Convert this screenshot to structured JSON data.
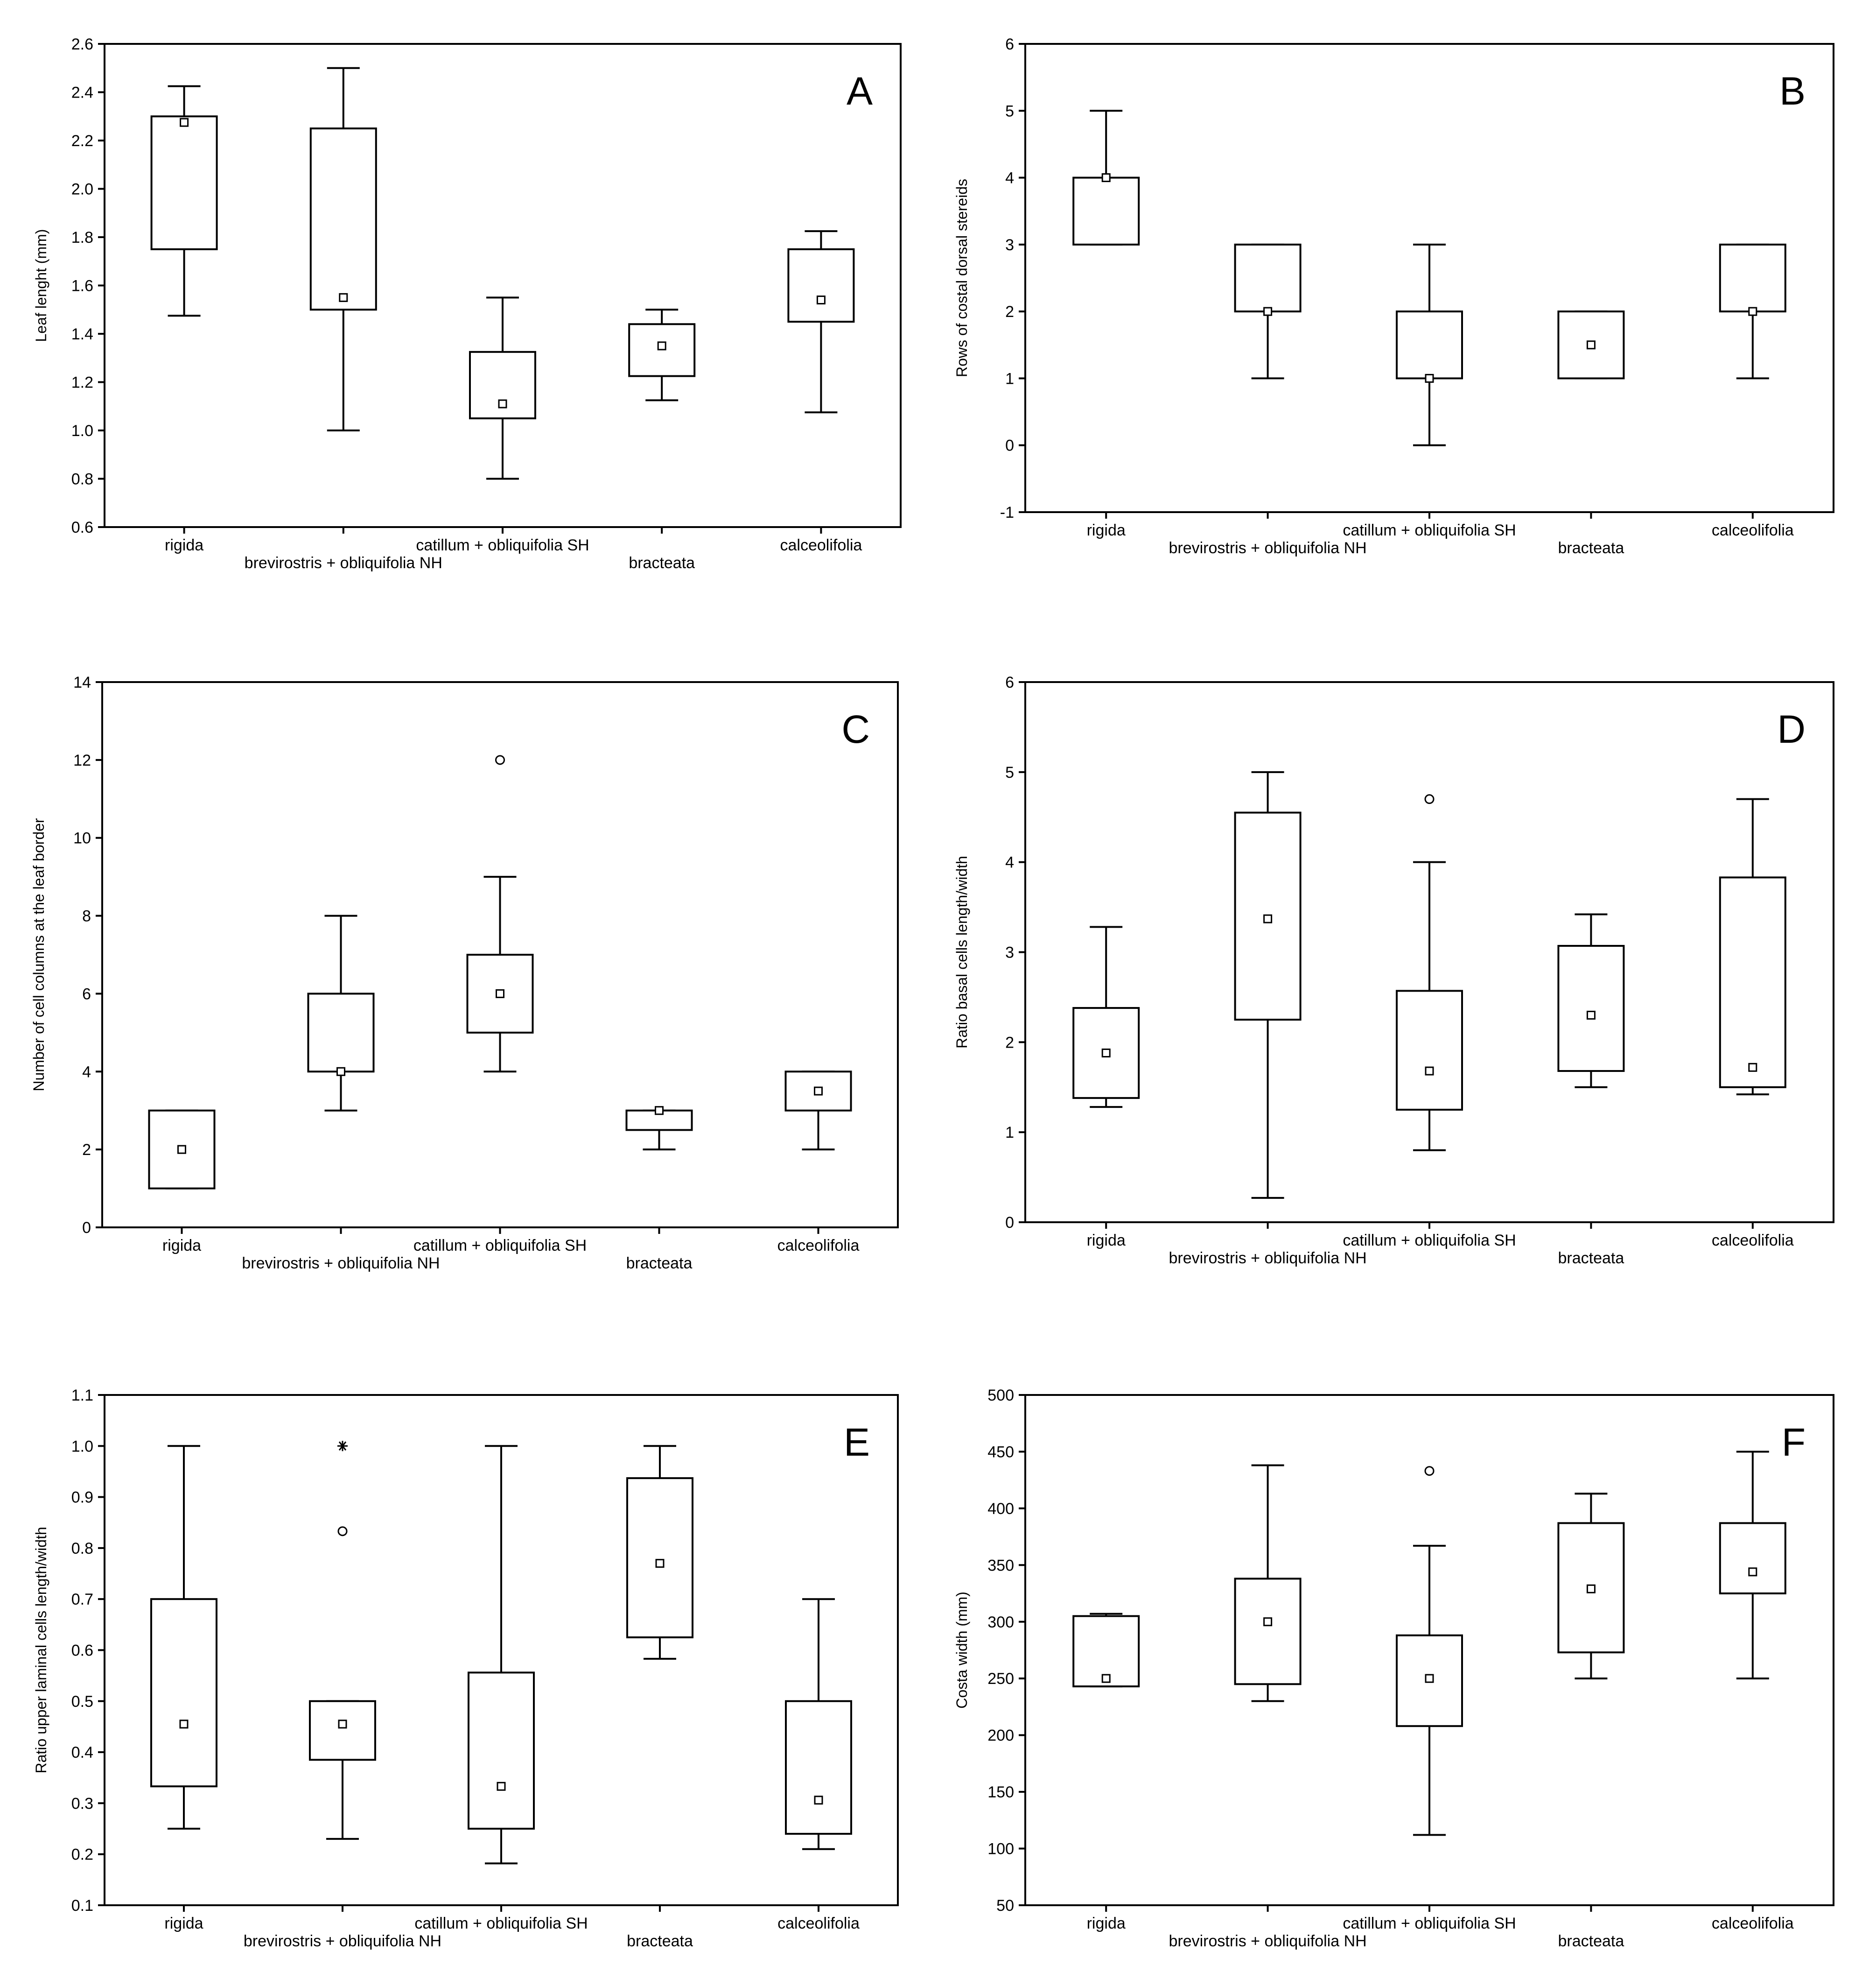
{
  "figure": {
    "categories": [
      "rigida",
      "brevirostris + obliquifolia NH",
      "catillum + obliquifolia SH",
      "bracteata",
      "calceolifolia"
    ],
    "colors": {
      "stroke": "#000000",
      "background": "#ffffff"
    }
  },
  "chart_data": [
    {
      "type": "box",
      "panel": "A",
      "title": "",
      "xlabel": "",
      "ylabel": "Leaf lenght (mm)",
      "ylim": [
        0.6,
        2.6
      ],
      "yticks": [
        0.6,
        0.8,
        1.0,
        1.2,
        1.4,
        1.6,
        1.8,
        2.0,
        2.2,
        2.4,
        2.6
      ],
      "ytick_labels": [
        "0.6",
        "0.8",
        "1.0",
        "1.2",
        "1.4",
        "1.6",
        "1.8",
        "2.0",
        "2.2",
        "2.4",
        "2.6"
      ],
      "categories": [
        "rigida",
        "brevirostris + obliquifolia NH",
        "catillum + obliquifolia SH",
        "bracteata",
        "calceolifolia"
      ],
      "boxes": [
        {
          "min": 1.475,
          "q1": 1.75,
          "median": 2.275,
          "q3": 2.3,
          "max": 2.425,
          "outliers": [],
          "extremes": []
        },
        {
          "min": 1.0,
          "q1": 1.5,
          "median": 1.55,
          "q3": 2.25,
          "max": 2.5,
          "outliers": [],
          "extremes": []
        },
        {
          "min": 0.8,
          "q1": 1.05,
          "median": 1.11,
          "q3": 1.325,
          "max": 1.55,
          "outliers": [],
          "extremes": []
        },
        {
          "min": 1.125,
          "q1": 1.225,
          "median": 1.35,
          "q3": 1.44,
          "max": 1.5,
          "outliers": [],
          "extremes": []
        },
        {
          "min": 1.075,
          "q1": 1.45,
          "median": 1.54,
          "q3": 1.75,
          "max": 1.825,
          "outliers": [],
          "extremes": []
        }
      ]
    },
    {
      "type": "box",
      "panel": "B",
      "title": "",
      "xlabel": "",
      "ylabel": "Rows of costal dorsal stereids",
      "ylim": [
        -1,
        6
      ],
      "yticks": [
        -1,
        0,
        1,
        2,
        3,
        4,
        5,
        6
      ],
      "ytick_labels": [
        "-1",
        "0",
        "1",
        "2",
        "3",
        "4",
        "5",
        "6"
      ],
      "categories": [
        "rigida",
        "brevirostris + obliquifolia NH",
        "catillum + obliquifolia SH",
        "bracteata",
        "calceolifolia"
      ],
      "boxes": [
        {
          "min": 3,
          "q1": 3,
          "median": 4,
          "q3": 4,
          "max": 5,
          "outliers": [],
          "extremes": []
        },
        {
          "min": 1,
          "q1": 2,
          "median": 2,
          "q3": 3,
          "max": 3,
          "outliers": [],
          "extremes": []
        },
        {
          "min": 0,
          "q1": 1,
          "median": 1,
          "q3": 2,
          "max": 3,
          "outliers": [],
          "extremes": []
        },
        {
          "min": 1,
          "q1": 1,
          "median": 1.5,
          "q3": 2,
          "max": 2,
          "outliers": [],
          "extremes": []
        },
        {
          "min": 1,
          "q1": 2,
          "median": 2,
          "q3": 3,
          "max": 3,
          "outliers": [],
          "extremes": []
        }
      ]
    },
    {
      "type": "box",
      "panel": "C",
      "title": "",
      "xlabel": "",
      "ylabel": "Number of cell columns at the leaf border",
      "ylim": [
        0,
        14
      ],
      "yticks": [
        0,
        2,
        4,
        6,
        8,
        10,
        12,
        14
      ],
      "ytick_labels": [
        "0",
        "2",
        "4",
        "6",
        "8",
        "10",
        "12",
        "14"
      ],
      "categories": [
        "rigida",
        "brevirostris + obliquifolia NH",
        "catillum + obliquifolia SH",
        "bracteata",
        "calceolifolia"
      ],
      "boxes": [
        {
          "min": 1,
          "q1": 1,
          "median": 2,
          "q3": 3,
          "max": 3,
          "outliers": [],
          "extremes": []
        },
        {
          "min": 3,
          "q1": 4,
          "median": 4,
          "q3": 6,
          "max": 8,
          "outliers": [],
          "extremes": []
        },
        {
          "min": 4,
          "q1": 5,
          "median": 6,
          "q3": 7,
          "max": 9,
          "outliers": [
            12
          ],
          "extremes": []
        },
        {
          "min": 2,
          "q1": 2.5,
          "median": 3,
          "q3": 3,
          "max": 3,
          "outliers": [],
          "extremes": []
        },
        {
          "min": 2,
          "q1": 3,
          "median": 3.5,
          "q3": 4,
          "max": 4,
          "outliers": [],
          "extremes": []
        }
      ]
    },
    {
      "type": "box",
      "panel": "D",
      "title": "",
      "xlabel": "",
      "ylabel": "Ratio basal cells length/width",
      "ylim": [
        0,
        6
      ],
      "yticks": [
        0,
        1,
        2,
        3,
        4,
        5,
        6
      ],
      "ytick_labels": [
        "0",
        "1",
        "2",
        "3",
        "4",
        "5",
        "6"
      ],
      "categories": [
        "rigida",
        "brevirostris + obliquifolia NH",
        "catillum + obliquifolia SH",
        "bracteata",
        "calceolifolia"
      ],
      "boxes": [
        {
          "min": 1.28,
          "q1": 1.38,
          "median": 1.88,
          "q3": 2.38,
          "max": 3.28,
          "outliers": [],
          "extremes": []
        },
        {
          "min": 0.27,
          "q1": 2.25,
          "median": 3.37,
          "q3": 4.55,
          "max": 5.0,
          "outliers": [],
          "extremes": []
        },
        {
          "min": 0.8,
          "q1": 1.25,
          "median": 1.68,
          "q3": 2.57,
          "max": 4.0,
          "outliers": [
            4.7
          ],
          "extremes": []
        },
        {
          "min": 1.5,
          "q1": 1.68,
          "median": 2.3,
          "q3": 3.07,
          "max": 3.42,
          "outliers": [],
          "extremes": []
        },
        {
          "min": 1.42,
          "q1": 1.5,
          "median": 1.72,
          "q3": 3.83,
          "max": 4.7,
          "outliers": [],
          "extremes": []
        }
      ]
    },
    {
      "type": "box",
      "panel": "E",
      "title": "",
      "xlabel": "",
      "ylabel": "Ratio upper laminal cells length/width",
      "ylim": [
        0.1,
        1.1
      ],
      "yticks": [
        0.1,
        0.2,
        0.3,
        0.4,
        0.5,
        0.6,
        0.7,
        0.8,
        0.9,
        1.0,
        1.1
      ],
      "ytick_labels": [
        "0.1",
        "0.2",
        "0.3",
        "0.4",
        "0.5",
        "0.6",
        "0.7",
        "0.8",
        "0.9",
        "1.0",
        "1.1"
      ],
      "categories": [
        "rigida",
        "brevirostris + obliquifolia NH",
        "catillum + obliquifolia SH",
        "bracteata",
        "calceolifolia"
      ],
      "boxes": [
        {
          "min": 0.25,
          "q1": 0.333,
          "median": 0.455,
          "q3": 0.7,
          "max": 1.0,
          "outliers": [],
          "extremes": []
        },
        {
          "min": 0.23,
          "q1": 0.385,
          "median": 0.455,
          "q3": 0.5,
          "max": 0.5,
          "outliers": [
            0.833
          ],
          "extremes": [
            1.0
          ]
        },
        {
          "min": 0.182,
          "q1": 0.25,
          "median": 0.333,
          "q3": 0.556,
          "max": 1.0,
          "outliers": [],
          "extremes": []
        },
        {
          "min": 0.583,
          "q1": 0.625,
          "median": 0.77,
          "q3": 0.937,
          "max": 1.0,
          "outliers": [],
          "extremes": []
        },
        {
          "min": 0.21,
          "q1": 0.24,
          "median": 0.306,
          "q3": 0.5,
          "max": 0.7,
          "outliers": [],
          "extremes": []
        }
      ]
    },
    {
      "type": "box",
      "panel": "F",
      "title": "",
      "xlabel": "",
      "ylabel": "Costa width (mm)",
      "ylim": [
        50,
        500
      ],
      "yticks": [
        50,
        100,
        150,
        200,
        250,
        300,
        350,
        400,
        450,
        500
      ],
      "ytick_labels": [
        "50",
        "100",
        "150",
        "200",
        "250",
        "300",
        "350",
        "400",
        "450",
        "500"
      ],
      "categories": [
        "rigida",
        "brevirostris + obliquifolia NH",
        "catillum + obliquifolia SH",
        "bracteata",
        "calceolifolia"
      ],
      "boxes": [
        {
          "min": 243,
          "q1": 243,
          "median": 250,
          "q3": 305,
          "max": 307,
          "outliers": [],
          "extremes": []
        },
        {
          "min": 230,
          "q1": 245,
          "median": 300,
          "q3": 338,
          "max": 438,
          "outliers": [],
          "extremes": []
        },
        {
          "min": 112,
          "q1": 208,
          "median": 250,
          "q3": 288,
          "max": 367,
          "outliers": [
            433
          ],
          "extremes": []
        },
        {
          "min": 250,
          "q1": 273,
          "median": 329,
          "q3": 387,
          "max": 413,
          "outliers": [],
          "extremes": []
        },
        {
          "min": 250,
          "q1": 325,
          "median": 344,
          "q3": 387,
          "max": 450,
          "outliers": [],
          "extremes": []
        }
      ]
    }
  ]
}
